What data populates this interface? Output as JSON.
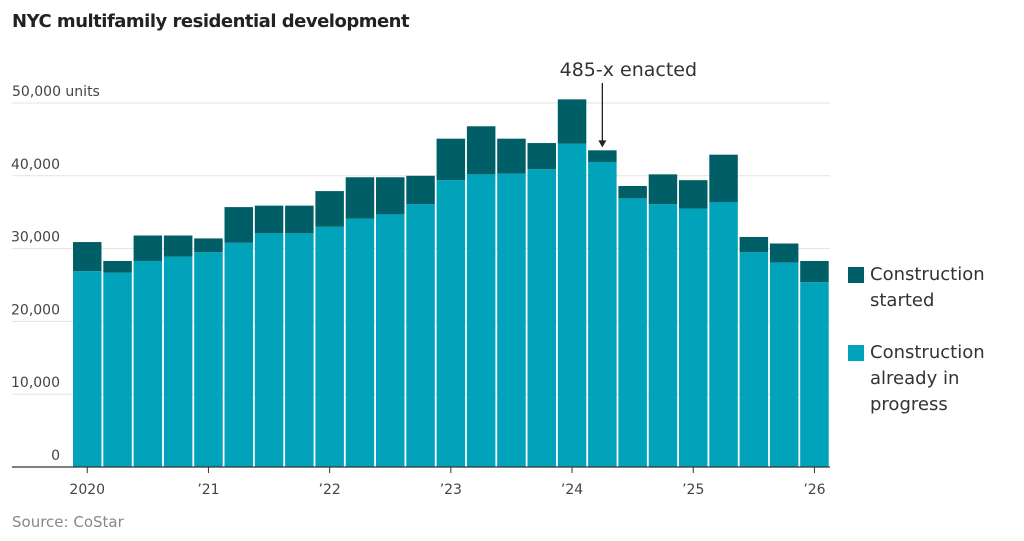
{
  "title": "NYC multifamily residential development",
  "source": "Source: CoStar",
  "colors": {
    "started": "#005f66",
    "in_progress": "#00a3ba",
    "grid": "#e3e3e3"
  },
  "legend": [
    {
      "label": "Construction started",
      "lines": [
        "Construction",
        "started"
      ],
      "color_key": "started"
    },
    {
      "label": "Construction already in progress",
      "lines": [
        "Construction",
        "already in",
        "progress"
      ],
      "color_key": "in_progress"
    }
  ],
  "chart_data": {
    "type": "bar",
    "stacked": true,
    "title": "NYC multifamily residential development",
    "ylabel": "units",
    "ylim": [
      0,
      50000
    ],
    "yticks": [
      0,
      10000,
      20000,
      30000,
      40000,
      50000
    ],
    "ytick_labels": [
      "0",
      "10,000",
      "20,000",
      "30,000",
      "40,000",
      "50,000 units"
    ],
    "grid": true,
    "legend_placement": "right",
    "categories": [
      "2020 Q1",
      "2020 Q2",
      "2020 Q3",
      "2020 Q4",
      "2021 Q1",
      "2021 Q2",
      "2021 Q3",
      "2021 Q4",
      "2022 Q1",
      "2022 Q2",
      "2022 Q3",
      "2022 Q4",
      "2023 Q1",
      "2023 Q2",
      "2023 Q3",
      "2023 Q4",
      "2024 Q1",
      "2024 Q2",
      "2024 Q3",
      "2024 Q4",
      "2025 Q1",
      "2025 Q2",
      "2025 Q3",
      "2025 Q4",
      "2026 Q1"
    ],
    "xtick_labels": [
      {
        "index": 0,
        "label": "2020"
      },
      {
        "index": 4,
        "label": "’21"
      },
      {
        "index": 8,
        "label": "’22"
      },
      {
        "index": 12,
        "label": "’23"
      },
      {
        "index": 16,
        "label": "’24"
      },
      {
        "index": 20,
        "label": "’25"
      },
      {
        "index": 24,
        "label": "’26"
      }
    ],
    "series": [
      {
        "name": "Construction already in progress",
        "values": [
          26900,
          26700,
          28300,
          28900,
          29500,
          30800,
          32100,
          32100,
          33000,
          34100,
          34700,
          36100,
          39400,
          40200,
          40300,
          40900,
          44400,
          41900,
          36900,
          36100,
          35500,
          36400,
          29500,
          28100,
          25400
        ]
      },
      {
        "name": "Construction started",
        "values": [
          4000,
          1600,
          3500,
          2900,
          1900,
          4900,
          3800,
          3800,
          4900,
          5700,
          5100,
          3900,
          5700,
          6600,
          4800,
          3600,
          6100,
          1600,
          1700,
          4100,
          3900,
          6500,
          2100,
          2600,
          2900
        ]
      }
    ],
    "annotations": [
      {
        "text": "485-x enacted",
        "category": "2024 Q2"
      }
    ]
  }
}
